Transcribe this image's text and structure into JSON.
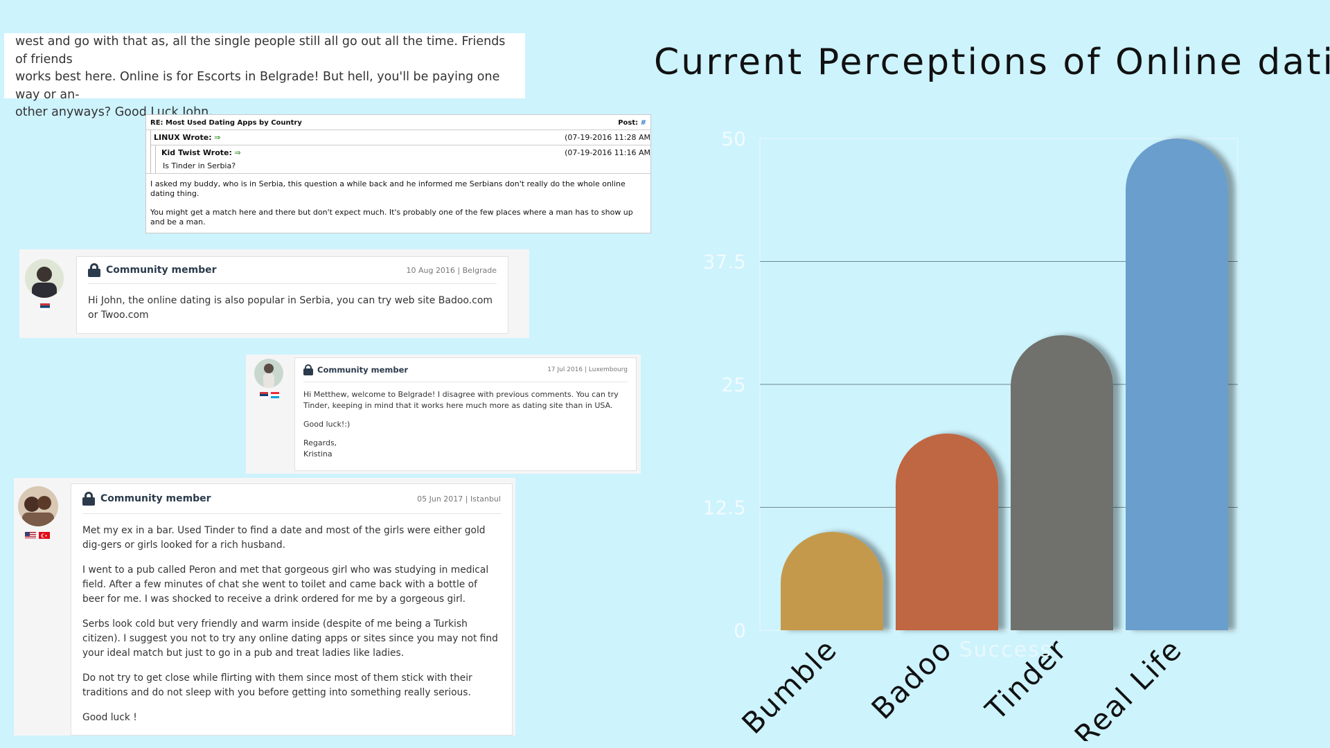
{
  "snippet": {
    "lines": [
      "west and go with that as, all the single people still all go out all the time. Friends of friends",
      "works best here. Online is for Escorts in Belgrade! But hell, you'll be paying one way or an-",
      "other anyways? Good Luck John."
    ]
  },
  "forum": {
    "subject": "RE: Most Used Dating Apps by Country",
    "post_label": "Post:",
    "post_num": "#",
    "quote1_author": "LINUX Wrote:",
    "quote1_date": "(07-19-2016 11:28 AM",
    "quote2_author": "Kid Twist Wrote:",
    "quote2_date": "(07-19-2016 11:16 AM",
    "quote2_text": "Is Tinder in Serbia?",
    "arrow": "⇒",
    "body1": "I asked my buddy, who is in Serbia, this question a while back and he informed me Serbians don't really do the whole online dating thing.",
    "body2": "You might get a match here and there but don't expect much. It's probably one of the few places where a man has to show up and be a man."
  },
  "cards": [
    {
      "member": "Community member",
      "meta": "10 Aug 2016 | Belgrade",
      "paragraphs": [
        "Hi John, the online dating is also popular in Serbia, you can try web site Badoo.com or Twoo.com"
      ]
    },
    {
      "member": "Community member",
      "meta": "17 Jul 2016 | Luxembourg",
      "paragraphs": [
        "Hi Metthew, welcome to Belgrade! I disagree with previous comments. You can try Tinder, keeping in mind that it works here much more as dating site than in USA.",
        "Good luck!:)",
        "Regards,",
        "Kristina"
      ]
    },
    {
      "member": "Community member",
      "meta": "05 Jun 2017 | Istanbul",
      "paragraphs": [
        "Met my ex in a bar. Used Tinder to find a date and most of the girls were either gold dig-gers or girls looked for a rich husband.",
        "I went to a pub called Peron and met that gorgeous girl who was studying in medical field. After a few minutes of chat she went to toilet and came back with a bottle of beer for me. I was shocked to receive a drink ordered for me by a gorgeous girl.",
        "Serbs look cold but very friendly and warm inside (despite of me being a Turkish citizen). I suggest you not to try any online dating apps or sites since you may not find your ideal match but just to go in a pub and treat ladies like ladies.",
        "Do not try to get close while flirting with them since most of them stick with their traditions and do not sleep with you before getting into something really serious.",
        "Good luck !"
      ]
    }
  ],
  "chart_data": {
    "type": "bar",
    "title": "Current Perceptions of Online dating",
    "xlabel": "Success",
    "ylabel": "",
    "categories": [
      "Bumble",
      "Badoo",
      "Tinder",
      "Real Life"
    ],
    "values": [
      10,
      20,
      30,
      50
    ],
    "colors": [
      "#c4994c",
      "#bf6643",
      "#6f716c",
      "#6a9ecc"
    ],
    "ylim": [
      0,
      50
    ],
    "yticks": [
      "0",
      "12.5",
      "25",
      "37.5",
      "50"
    ],
    "grid": true
  }
}
